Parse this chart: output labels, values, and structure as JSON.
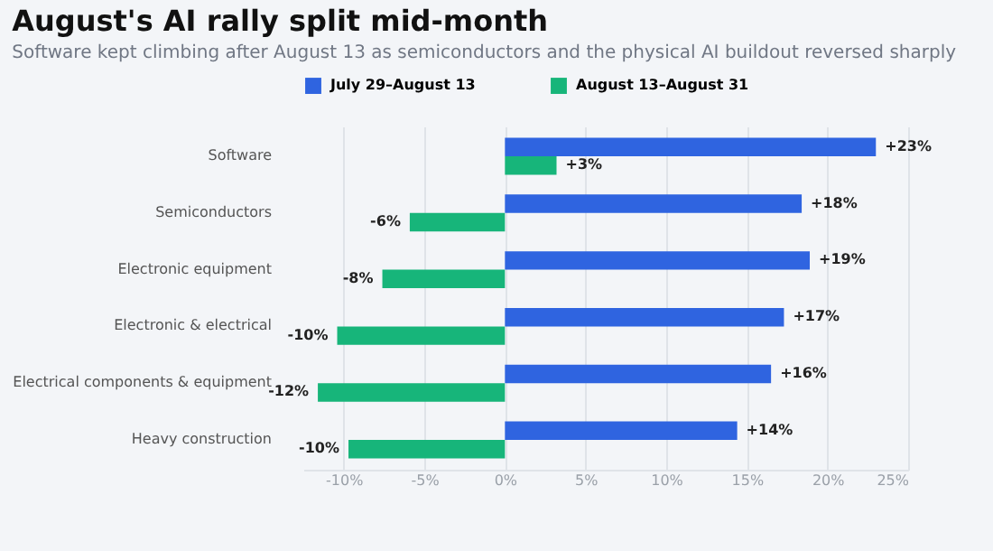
{
  "chart_data": {
    "type": "bar",
    "orientation": "horizontal",
    "title": "August's AI rally split mid-month",
    "subtitle": "Software kept climbing after August 13 as semiconductors and the physical AI buildout reversed sharply",
    "categories": [
      "Software",
      "Semiconductors",
      "Electronic equipment",
      "Electronic & electrical",
      "Electrical components & equipment",
      "Heavy construction"
    ],
    "series": [
      {
        "name": "July 29–August 13",
        "color": "#2f64e0",
        "values": [
          23.0,
          18.4,
          18.9,
          17.3,
          16.5,
          14.4
        ],
        "value_labels": [
          "+23%",
          "+18%",
          "+19%",
          "+17%",
          "+16%",
          "+14%"
        ]
      },
      {
        "name": "August 13–August 31",
        "color": "#17b57a",
        "values": [
          3.2,
          -5.9,
          -7.6,
          -10.4,
          -11.6,
          -9.7
        ],
        "value_labels": [
          "+3%",
          "-6%",
          "-8%",
          "-10%",
          "-12%",
          "-10%"
        ]
      }
    ],
    "xlim": [
      -12.5,
      25
    ],
    "xticks": [
      {
        "value": -10,
        "label": "-10%"
      },
      {
        "value": -5,
        "label": "-5%"
      },
      {
        "value": 0,
        "label": "0%"
      },
      {
        "value": 5,
        "label": "5%"
      },
      {
        "value": 10,
        "label": "10%"
      },
      {
        "value": 15,
        "label": "15%"
      },
      {
        "value": 20,
        "label": "20%"
      },
      {
        "value": 25,
        "label": "25%"
      }
    ],
    "grid": "x",
    "legend": "top"
  }
}
